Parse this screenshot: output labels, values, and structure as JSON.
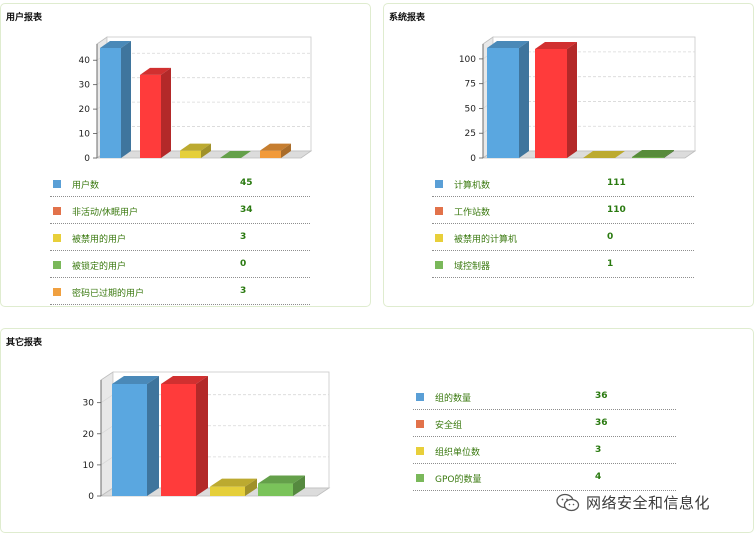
{
  "panels": [
    {
      "title": "用户报表"
    },
    {
      "title": "系统报表"
    },
    {
      "title": "其它报表"
    }
  ],
  "chart_data": [
    {
      "type": "bar",
      "title": "用户报表",
      "categories": [
        "用户数",
        "非活动/休眠用户",
        "被禁用的用户",
        "被锁定的用户",
        "密码已过期的用户"
      ],
      "values": [
        45,
        34,
        3,
        0,
        3
      ],
      "colors": [
        "#5aa7e0",
        "#ff3b3b",
        "#e5cf3a",
        "#7ac35a",
        "#f19a3a"
      ],
      "yticks": [
        0,
        10,
        20,
        30,
        40
      ],
      "ylim": [
        0,
        45
      ],
      "grid": true,
      "style": "3d"
    },
    {
      "type": "bar",
      "title": "系统报表",
      "categories": [
        "计算机数",
        "工作站数",
        "被禁用的计算机",
        "域控制器"
      ],
      "values": [
        111,
        110,
        0,
        1
      ],
      "colors": [
        "#5aa7e0",
        "#ff3b3b",
        "#e5cf3a",
        "#6aaa48"
      ],
      "yticks": [
        0,
        25,
        50,
        75,
        100
      ],
      "ylim": [
        0,
        111
      ],
      "grid": true,
      "style": "3d"
    },
    {
      "type": "bar",
      "title": "其它报表",
      "categories": [
        "组的数量",
        "安全组",
        "组织单位数",
        "GPO的数量"
      ],
      "values": [
        36,
        36,
        3,
        4
      ],
      "colors": [
        "#5aa7e0",
        "#ff3b3b",
        "#e5cf3a",
        "#7ac35a"
      ],
      "yticks": [
        0,
        10,
        20,
        30
      ],
      "ylim": [
        0,
        36
      ],
      "grid": true,
      "style": "3d"
    }
  ],
  "legend_swatches": [
    [
      "#5a9fd6",
      "#e2724a",
      "#e8cf3a",
      "#7ab85a",
      "#f0a040"
    ],
    [
      "#5a9fd6",
      "#e2724a",
      "#e8cf3a",
      "#7ab85a"
    ],
    [
      "#5a9fd6",
      "#e2724a",
      "#e8cf3a",
      "#7ab85a"
    ]
  ],
  "watermark": {
    "text": "网络安全和信息化",
    "icon": "wechat-icon"
  }
}
